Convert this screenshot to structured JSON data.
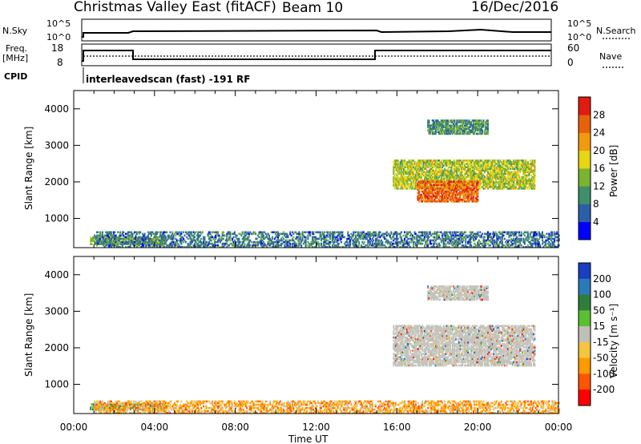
{
  "header": {
    "station": "Christmas Valley East (fitACF)",
    "beam": "Beam 10",
    "date": "16/Dec/2016"
  },
  "strip_labels": {
    "nsky": "N.Sky",
    "nsky_hi": "10^5",
    "nsky_lo": "10^0",
    "nsearch": "N.Search",
    "nsearch_hi": "10^5",
    "nsearch_lo": "10^0",
    "freq": "Freq.",
    "freq_unit": "[MHz]",
    "freq_hi": "18",
    "freq_lo": "8",
    "nave": "Nave",
    "nave_hi": "60",
    "nave_lo": "0",
    "cpid": "CPID",
    "cpid_text": "interleavedscan (fast) -191 RF"
  },
  "colors": {
    "power": [
      "#0000ff",
      "#2d5fa8",
      "#3f8f6a",
      "#7ab32f",
      "#e6d614",
      "#f29a0f",
      "#e8620d",
      "#e01b10"
    ],
    "velocity": [
      "#ff0000",
      "#ff5500",
      "#ff9a00",
      "#f5c542",
      "#c0c0b8",
      "#58c032",
      "#2f7d3a",
      "#2a7ab8",
      "#1a3fc0"
    ],
    "grey": "#c4c4bc"
  },
  "chart_data": [
    {
      "type": "heatmap",
      "name": "power",
      "ylabel": "Slant Range [km]",
      "xlabel": "",
      "x_ticks": [
        "00:00",
        "04:00",
        "08:00",
        "12:00",
        "16:00",
        "20:00",
        "00:00"
      ],
      "y_ticks": [
        1000,
        2000,
        3000,
        4000
      ],
      "ylim": [
        200,
        4500
      ],
      "colorbar_label": "Power [dB]",
      "colorbar_ticks": [
        "4",
        "8",
        "12",
        "16",
        "20",
        "24",
        "28"
      ],
      "echo_regions": [
        {
          "t": [
            0.8,
            4.5
          ],
          "r": [
            280,
            480
          ],
          "value_db": 14
        },
        {
          "t": [
            1.0,
            24.0
          ],
          "r": [
            200,
            650
          ],
          "value_db": 8
        },
        {
          "t": [
            15.8,
            22.8
          ],
          "r": [
            1800,
            2600
          ],
          "value_db": 16
        },
        {
          "t": [
            17.0,
            20.0
          ],
          "r": [
            1450,
            2000
          ],
          "value_db": 26
        },
        {
          "t": [
            17.5,
            20.5
          ],
          "r": [
            3300,
            3700
          ],
          "value_db": 10
        }
      ]
    },
    {
      "type": "heatmap",
      "name": "velocity",
      "ylabel": "Slant Range [km]",
      "xlabel": "Time UT",
      "x_ticks": [
        "00:00",
        "04:00",
        "08:00",
        "12:00",
        "16:00",
        "20:00",
        "00:00"
      ],
      "y_ticks": [
        1000,
        2000,
        3000,
        4000
      ],
      "ylim": [
        200,
        4500
      ],
      "colorbar_label": "Velocity [m s⁻¹]",
      "colorbar_ticks": [
        "200",
        "100",
        "50",
        "15",
        "-15",
        "-50",
        "-100",
        "-200"
      ],
      "echo_regions": [
        {
          "t": [
            0.8,
            4.5
          ],
          "r": [
            300,
            480
          ],
          "value_ms": 30
        },
        {
          "t": [
            1.0,
            24.0
          ],
          "r": [
            200,
            550
          ],
          "value_ms": -60
        },
        {
          "t": [
            15.8,
            22.8
          ],
          "r": [
            1500,
            2600
          ],
          "value_ms": 0
        },
        {
          "t": [
            17.5,
            20.5
          ],
          "r": [
            3300,
            3700
          ],
          "value_ms": 0
        }
      ]
    }
  ]
}
